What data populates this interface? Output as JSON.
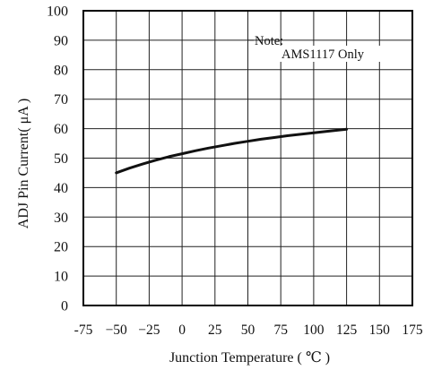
{
  "chart_data": {
    "type": "line",
    "xlabel": "Junction Temperature ( ℃ )",
    "ylabel": "ADJ Pin Current( μA )",
    "xlim": [
      -75,
      175
    ],
    "ylim": [
      0,
      100
    ],
    "x_ticks": [
      -75,
      -50,
      -25,
      0,
      25,
      50,
      75,
      100,
      125,
      150,
      175
    ],
    "y_ticks": [
      0,
      10,
      20,
      30,
      40,
      50,
      60,
      70,
      80,
      90,
      100
    ],
    "x_tick_labels": [
      "-75",
      "−50",
      "−25",
      "0",
      "25",
      "50",
      "75",
      "100",
      "125",
      "150",
      "175"
    ],
    "y_tick_labels": [
      "0",
      "10",
      "20",
      "30",
      "40",
      "50",
      "60",
      "70",
      "80",
      "90",
      "100"
    ],
    "grid": true,
    "legend": "none",
    "annotations": [
      {
        "line1": "Note:",
        "line2": "AMS1117 Only",
        "leader_to_x": 50,
        "leader_at_y": 90
      }
    ],
    "series": [
      {
        "x": [
          -50,
          -40,
          -30,
          -20,
          -10,
          0,
          10,
          20,
          30,
          40,
          50,
          60,
          70,
          80,
          90,
          100,
          110,
          125
        ],
        "y": [
          45,
          46.6,
          48.0,
          49.3,
          50.5,
          51.5,
          52.5,
          53.4,
          54.2,
          55.0,
          55.7,
          56.4,
          57.0,
          57.6,
          58.1,
          58.6,
          59.1,
          59.8
        ]
      }
    ],
    "colors": {
      "line": "#111111",
      "grid": "#222222",
      "frame": "#000000"
    }
  }
}
